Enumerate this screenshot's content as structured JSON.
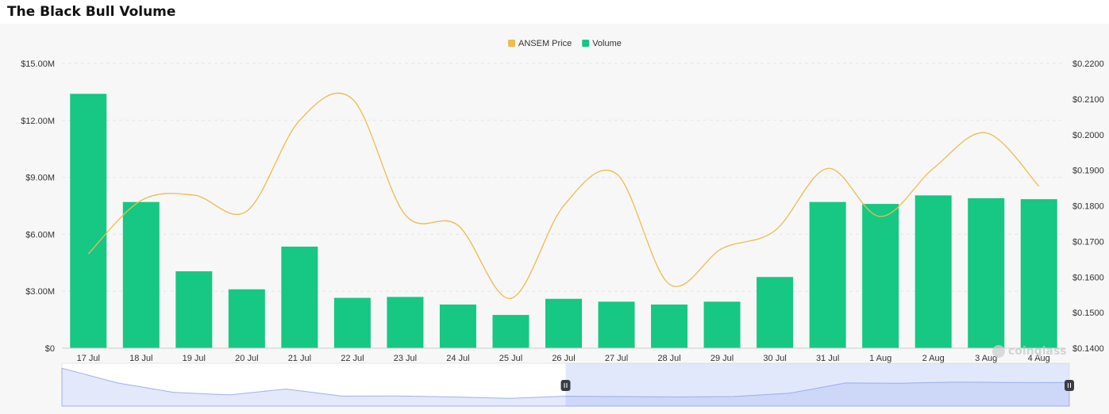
{
  "page": {
    "title": "The Black Bull Volume"
  },
  "watermark": {
    "text": "coinglass"
  },
  "colors": {
    "volume": "#17c784",
    "price": "#eebb4d",
    "grid": "#e6e6e6",
    "axis_text": "#333333",
    "zoom_fill": "#e3e8fb",
    "zoom_line": "#9fb1ee",
    "handle": "#3a3d46"
  },
  "chart_data": {
    "type": "bar",
    "title": "The Black Bull Volume",
    "categories": [
      "17 Jul",
      "18 Jul",
      "19 Jul",
      "20 Jul",
      "21 Jul",
      "22 Jul",
      "23 Jul",
      "24 Jul",
      "25 Jul",
      "26 Jul",
      "27 Jul",
      "28 Jul",
      "29 Jul",
      "30 Jul",
      "31 Jul",
      "1 Aug",
      "2 Aug",
      "3 Aug",
      "4 Aug"
    ],
    "series": [
      {
        "name": "Volume",
        "type": "bar",
        "axis": "left",
        "values": [
          13.4,
          7.7,
          4.05,
          3.1,
          5.35,
          2.65,
          2.7,
          2.3,
          1.75,
          2.6,
          2.45,
          2.3,
          2.45,
          3.75,
          7.7,
          7.6,
          8.05,
          7.9,
          7.85
        ]
      },
      {
        "name": "ANSEM Price",
        "type": "line",
        "axis": "right",
        "values": [
          0.1665,
          0.1815,
          0.183,
          0.1785,
          0.204,
          0.21,
          0.1775,
          0.1745,
          0.154,
          0.18,
          0.189,
          0.158,
          0.168,
          0.173,
          0.1905,
          0.177,
          0.1905,
          0.2005,
          0.1855
        ]
      }
    ],
    "y_left": {
      "ticks": [
        "$0",
        "$3.00M",
        "$6.00M",
        "$9.00M",
        "$12.00M",
        "$15.00M"
      ],
      "range": [
        0,
        15
      ],
      "unit": "M"
    },
    "y_right": {
      "ticks": [
        "$0.1400",
        "$0.1500",
        "$0.1600",
        "$0.1700",
        "$0.1800",
        "$0.1900",
        "$0.2000",
        "$0.2100",
        "$0.2200"
      ],
      "range": [
        0.14,
        0.22
      ]
    },
    "legend": {
      "position": "top-center",
      "items": [
        "ANSEM Price",
        "Volume"
      ]
    },
    "grid": true,
    "zoom_window": {
      "start_fraction": 0.5,
      "end_fraction": 1.0
    }
  }
}
